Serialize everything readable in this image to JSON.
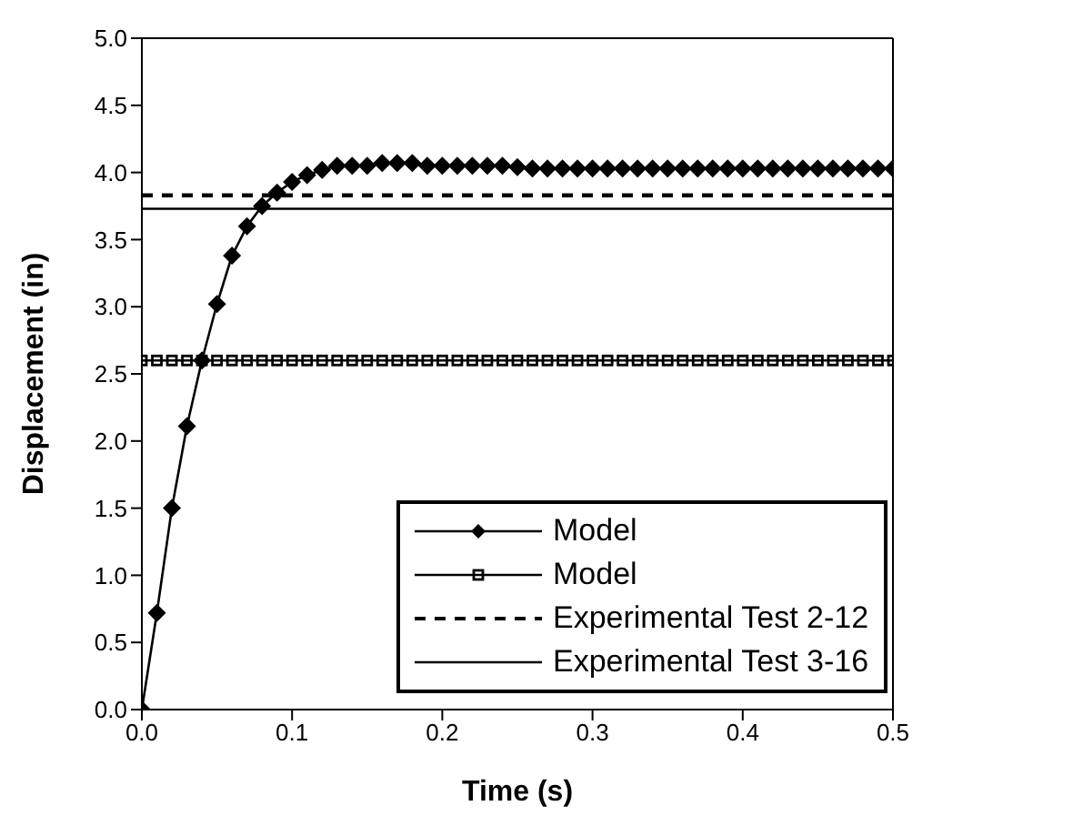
{
  "chart_data": {
    "type": "line",
    "xlabel": "Time (s)",
    "ylabel": "Displacement (in)",
    "x": [
      0,
      0.01,
      0.02,
      0.03,
      0.04,
      0.05,
      0.06,
      0.07,
      0.08,
      0.09,
      0.1,
      0.11,
      0.12,
      0.13,
      0.14,
      0.15,
      0.16,
      0.17,
      0.18,
      0.19,
      0.2,
      0.21,
      0.22,
      0.23,
      0.24,
      0.25,
      0.26,
      0.27,
      0.28,
      0.29,
      0.3,
      0.31,
      0.32,
      0.33,
      0.34,
      0.35,
      0.36,
      0.37,
      0.38,
      0.39,
      0.4,
      0.41,
      0.42,
      0.43,
      0.44,
      0.45,
      0.46,
      0.47,
      0.48,
      0.49,
      0.5
    ],
    "series": [
      {
        "name": "Model",
        "color": "#000000",
        "marker": "diamond",
        "line_style": "solid",
        "values": [
          0,
          0.72,
          1.5,
          2.11,
          2.6,
          3.02,
          3.38,
          3.6,
          3.75,
          3.85,
          3.93,
          3.98,
          4.02,
          4.05,
          4.05,
          4.05,
          4.07,
          4.07,
          4.07,
          4.05,
          4.05,
          4.05,
          4.05,
          4.05,
          4.05,
          4.04,
          4.03,
          4.03,
          4.03,
          4.03,
          4.03,
          4.03,
          4.03,
          4.03,
          4.03,
          4.03,
          4.03,
          4.03,
          4.03,
          4.03,
          4.03,
          4.03,
          4.03,
          4.03,
          4.03,
          4.03,
          4.03,
          4.03,
          4.03,
          4.03,
          4.03
        ]
      },
      {
        "name": "Model",
        "color": "#000000",
        "marker": "square",
        "line_style": "solid",
        "values": [
          2.6,
          2.6,
          2.6,
          2.6,
          2.6,
          2.6,
          2.6,
          2.6,
          2.6,
          2.6,
          2.6,
          2.6,
          2.6,
          2.6,
          2.6,
          2.6,
          2.6,
          2.6,
          2.6,
          2.6,
          2.6,
          2.6,
          2.6,
          2.6,
          2.6,
          2.6,
          2.6,
          2.6,
          2.6,
          2.6,
          2.6,
          2.6,
          2.6,
          2.6,
          2.6,
          2.6,
          2.6,
          2.6,
          2.6,
          2.6,
          2.6,
          2.6,
          2.6,
          2.6,
          2.6,
          2.6,
          2.6,
          2.6,
          2.6,
          2.6,
          2.6
        ]
      },
      {
        "name": "Experimental Test 2-12",
        "color": "#000000",
        "marker": "none",
        "line_style": "dashed",
        "values": [
          3.83,
          3.83,
          3.83,
          3.83,
          3.83,
          3.83,
          3.83,
          3.83,
          3.83,
          3.83,
          3.83,
          3.83,
          3.83,
          3.83,
          3.83,
          3.83,
          3.83,
          3.83,
          3.83,
          3.83,
          3.83,
          3.83,
          3.83,
          3.83,
          3.83,
          3.83,
          3.83,
          3.83,
          3.83,
          3.83,
          3.83,
          3.83,
          3.83,
          3.83,
          3.83,
          3.83,
          3.83,
          3.83,
          3.83,
          3.83,
          3.83,
          3.83,
          3.83,
          3.83,
          3.83,
          3.83,
          3.83,
          3.83,
          3.83,
          3.83,
          3.83
        ]
      },
      {
        "name": "Experimental Test 3-16",
        "color": "#000000",
        "marker": "none",
        "line_style": "solid",
        "values": [
          3.73,
          3.73,
          3.73,
          3.73,
          3.73,
          3.73,
          3.73,
          3.73,
          3.73,
          3.73,
          3.73,
          3.73,
          3.73,
          3.73,
          3.73,
          3.73,
          3.73,
          3.73,
          3.73,
          3.73,
          3.73,
          3.73,
          3.73,
          3.73,
          3.73,
          3.73,
          3.73,
          3.73,
          3.73,
          3.73,
          3.73,
          3.73,
          3.73,
          3.73,
          3.73,
          3.73,
          3.73,
          3.73,
          3.73,
          3.73,
          3.73,
          3.73,
          3.73,
          3.73,
          3.73,
          3.73,
          3.73,
          3.73,
          3.73,
          3.73,
          3.73
        ]
      }
    ],
    "xlim": [
      0,
      0.5
    ],
    "xticks": [
      {
        "value": 0,
        "label": "0.0"
      },
      0.1,
      0.2,
      0.3,
      0.4,
      0.5
    ],
    "ylim": [
      0,
      5
    ],
    "yticks": [
      {
        "value": 0,
        "label": "0.0"
      },
      0.5,
      {
        "value": 1,
        "label": "1.0"
      },
      1.5,
      {
        "value": 2,
        "label": "2.0"
      },
      2.5,
      {
        "value": 3,
        "label": "3.0"
      },
      3.5,
      {
        "value": 4,
        "label": "4.0"
      },
      4.5,
      {
        "value": 5,
        "label": "5.0"
      }
    ],
    "legend": "bottom right"
  }
}
